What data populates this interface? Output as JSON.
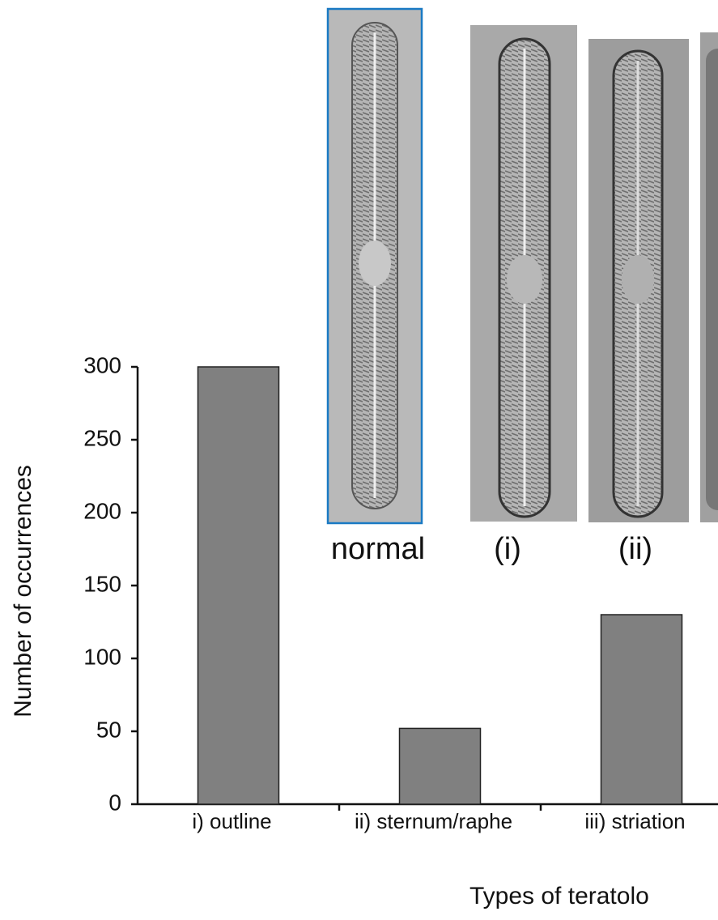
{
  "chart_data": {
    "type": "bar",
    "y_label": "Number of occurrences",
    "x_label": "Types of teratolo",
    "categories": [
      "i) outline",
      "ii) sternum/raphe",
      "iii) striation"
    ],
    "values": [
      300,
      52,
      130
    ],
    "color": "#808080",
    "ylim": [
      0,
      300
    ],
    "yticks": [
      0,
      50,
      100,
      150,
      200,
      250,
      300
    ],
    "grid": false,
    "annotations": [
      "normal",
      "(i)",
      "(ii)"
    ]
  }
}
